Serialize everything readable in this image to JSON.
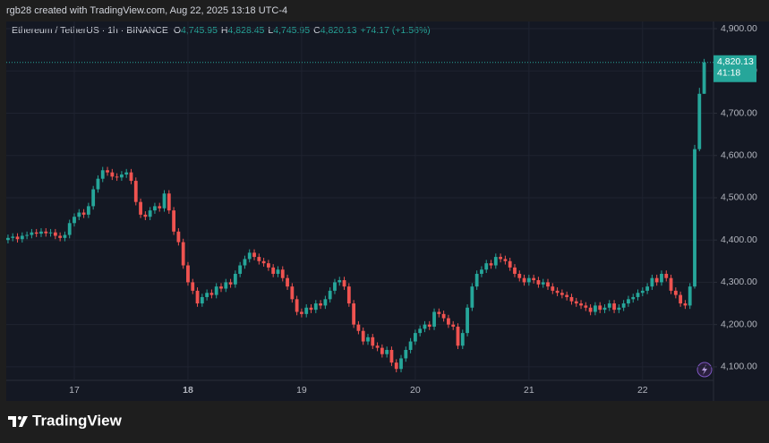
{
  "header": {
    "credit": "rgb28 created with TradingView.com, Aug 22, 2025 13:18 UTC-4",
    "symbol": "Ethereum / TetherUS · 1h · BINANCE",
    "ohlc": [
      {
        "key": "O",
        "value": "4,745.95"
      },
      {
        "key": "H",
        "value": "4,828.45"
      },
      {
        "key": "L",
        "value": "4,745.95"
      },
      {
        "key": "C",
        "value": "4,820.13"
      }
    ],
    "change": "+74.17 (+1.56%)"
  },
  "price_tag": {
    "price": "4,820.13",
    "countdown": "41:18"
  },
  "footer": {
    "logo": "TradingView"
  },
  "chart_data": {
    "type": "candlestick",
    "up_color": "#26a69a",
    "down_color": "#ef5350",
    "grid": true,
    "ylim": [
      4068,
      4917
    ],
    "yticks": [
      {
        "value": 4100,
        "label": "4,100.00"
      },
      {
        "value": 4200,
        "label": "4,200.00"
      },
      {
        "value": 4300,
        "label": "4,300.00"
      },
      {
        "value": 4400,
        "label": "4,400.00"
      },
      {
        "value": 4500,
        "label": "4,500.00"
      },
      {
        "value": 4600,
        "label": "4,600.00"
      },
      {
        "value": 4700,
        "label": "4,700.00"
      },
      {
        "value": 4800,
        "label": "4,800.00"
      },
      {
        "value": 4900,
        "label": "4,900.00"
      }
    ],
    "categories": [
      null,
      null,
      null,
      null,
      null,
      null,
      null,
      null,
      null,
      null,
      null,
      null,
      null,
      null,
      "17",
      null,
      null,
      null,
      null,
      null,
      null,
      null,
      null,
      null,
      null,
      null,
      null,
      null,
      null,
      null,
      null,
      null,
      null,
      null,
      null,
      null,
      null,
      null,
      "18",
      null,
      null,
      null,
      null,
      null,
      null,
      null,
      null,
      null,
      null,
      null,
      null,
      null,
      null,
      null,
      null,
      null,
      null,
      null,
      null,
      null,
      null,
      null,
      "19",
      null,
      null,
      null,
      null,
      null,
      null,
      null,
      null,
      null,
      null,
      null,
      null,
      null,
      null,
      null,
      null,
      null,
      null,
      null,
      null,
      null,
      null,
      null,
      "20",
      null,
      null,
      null,
      null,
      null,
      null,
      null,
      null,
      null,
      null,
      null,
      null,
      null,
      null,
      null,
      null,
      null,
      null,
      null,
      null,
      null,
      null,
      null,
      "21",
      null,
      null,
      null,
      null,
      null,
      null,
      null,
      null,
      null,
      null,
      null,
      null,
      null,
      null,
      null,
      null,
      null,
      null,
      null,
      null,
      null,
      null,
      null,
      "22",
      null,
      null,
      null,
      null,
      null,
      null,
      null,
      null,
      null,
      null,
      null,
      null,
      null
    ],
    "open": [
      4400,
      4405,
      4408,
      4402,
      4410,
      4412,
      4418,
      4415,
      4420,
      4416,
      4418,
      4410,
      4405,
      4412,
      4440,
      4455,
      4465,
      4460,
      4480,
      4520,
      4545,
      4565,
      4560,
      4550,
      4548,
      4555,
      4560,
      4540,
      4490,
      4460,
      4455,
      4470,
      4480,
      4475,
      4510,
      4470,
      4420,
      4395,
      4340,
      4300,
      4280,
      4250,
      4265,
      4275,
      4270,
      4290,
      4285,
      4300,
      4295,
      4320,
      4340,
      4355,
      4370,
      4360,
      4350,
      4345,
      4335,
      4320,
      4330,
      4310,
      4290,
      4260,
      4230,
      4225,
      4240,
      4235,
      4250,
      4245,
      4260,
      4280,
      4300,
      4305,
      4290,
      4250,
      4200,
      4185,
      4160,
      4170,
      4150,
      4145,
      4130,
      4140,
      4110,
      4095,
      4120,
      4140,
      4160,
      4180,
      4190,
      4200,
      4195,
      4230,
      4225,
      4215,
      4200,
      4195,
      4150,
      4180,
      4240,
      4290,
      4320,
      4330,
      4345,
      4340,
      4360,
      4355,
      4350,
      4335,
      4320,
      4310,
      4300,
      4310,
      4305,
      4295,
      4300,
      4290,
      4280,
      4275,
      4270,
      4265,
      4255,
      4250,
      4245,
      4240,
      4230,
      4245,
      4235,
      4240,
      4250,
      4235,
      4240,
      4250,
      4260,
      4265,
      4275,
      4280,
      4290,
      4310,
      4300,
      4320,
      4310,
      4280,
      4270,
      4250,
      4245,
      4290,
      4615,
      4745.95
    ],
    "high": [
      4413,
      4416,
      4416,
      4418,
      4420,
      4426,
      4426,
      4428,
      4428,
      4426,
      4426,
      4418,
      4420,
      4448,
      4463,
      4473,
      4473,
      4488,
      4528,
      4553,
      4573,
      4573,
      4568,
      4558,
      4563,
      4568,
      4568,
      4548,
      4498,
      4468,
      4478,
      4488,
      4488,
      4518,
      4518,
      4478,
      4428,
      4403,
      4348,
      4308,
      4288,
      4273,
      4283,
      4283,
      4298,
      4298,
      4308,
      4308,
      4328,
      4348,
      4363,
      4378,
      4378,
      4368,
      4358,
      4353,
      4343,
      4338,
      4338,
      4318,
      4298,
      4268,
      4238,
      4248,
      4248,
      4258,
      4258,
      4268,
      4288,
      4308,
      4313,
      4313,
      4298,
      4258,
      4208,
      4193,
      4178,
      4178,
      4158,
      4153,
      4148,
      4148,
      4118,
      4128,
      4148,
      4168,
      4188,
      4198,
      4208,
      4208,
      4238,
      4238,
      4233,
      4223,
      4208,
      4203,
      4188,
      4248,
      4298,
      4328,
      4338,
      4353,
      4353,
      4368,
      4368,
      4363,
      4358,
      4343,
      4328,
      4318,
      4318,
      4318,
      4313,
      4308,
      4308,
      4298,
      4288,
      4283,
      4278,
      4273,
      4263,
      4258,
      4253,
      4248,
      4253,
      4253,
      4248,
      4258,
      4258,
      4248,
      4258,
      4268,
      4273,
      4283,
      4288,
      4298,
      4318,
      4318,
      4328,
      4328,
      4318,
      4288,
      4278,
      4258,
      4298,
      4625,
      4760,
      4828.45
    ],
    "low": [
      4392,
      4397,
      4394,
      4394,
      4402,
      4404,
      4407,
      4407,
      4408,
      4408,
      4402,
      4397,
      4397,
      4404,
      4432,
      4447,
      4452,
      4452,
      4472,
      4512,
      4537,
      4552,
      4542,
      4540,
      4540,
      4547,
      4532,
      4482,
      4452,
      4447,
      4447,
      4462,
      4467,
      4467,
      4462,
      4412,
      4387,
      4332,
      4292,
      4272,
      4242,
      4242,
      4257,
      4262,
      4262,
      4277,
      4277,
      4287,
      4287,
      4312,
      4332,
      4347,
      4352,
      4342,
      4337,
      4327,
      4312,
      4312,
      4302,
      4282,
      4252,
      4222,
      4217,
      4217,
      4227,
      4227,
      4237,
      4237,
      4252,
      4272,
      4292,
      4282,
      4242,
      4192,
      4177,
      4152,
      4152,
      4142,
      4137,
      4122,
      4122,
      4102,
      4087,
      4087,
      4112,
      4132,
      4152,
      4172,
      4182,
      4187,
      4187,
      4217,
      4207,
      4192,
      4187,
      4142,
      4142,
      4172,
      4232,
      4282,
      4312,
      4322,
      4332,
      4332,
      4347,
      4342,
      4327,
      4312,
      4302,
      4292,
      4292,
      4297,
      4287,
      4287,
      4282,
      4272,
      4267,
      4262,
      4257,
      4247,
      4242,
      4237,
      4232,
      4222,
      4222,
      4227,
      4227,
      4232,
      4227,
      4227,
      4232,
      4242,
      4252,
      4257,
      4267,
      4272,
      4282,
      4292,
      4292,
      4302,
      4272,
      4262,
      4242,
      4237,
      4237,
      4285,
      4610,
      4745.95
    ],
    "close": [
      4405,
      4408,
      4402,
      4410,
      4412,
      4418,
      4415,
      4420,
      4416,
      4418,
      4410,
      4405,
      4412,
      4440,
      4455,
      4465,
      4460,
      4480,
      4520,
      4545,
      4565,
      4560,
      4550,
      4548,
      4555,
      4560,
      4540,
      4490,
      4460,
      4455,
      4470,
      4480,
      4475,
      4510,
      4470,
      4420,
      4395,
      4340,
      4300,
      4280,
      4250,
      4265,
      4275,
      4270,
      4290,
      4285,
      4300,
      4295,
      4320,
      4340,
      4355,
      4370,
      4360,
      4350,
      4345,
      4335,
      4320,
      4330,
      4310,
      4290,
      4260,
      4230,
      4225,
      4240,
      4235,
      4250,
      4245,
      4260,
      4280,
      4300,
      4305,
      4290,
      4250,
      4200,
      4185,
      4160,
      4170,
      4150,
      4145,
      4130,
      4140,
      4110,
      4095,
      4120,
      4140,
      4160,
      4180,
      4190,
      4200,
      4195,
      4230,
      4225,
      4215,
      4200,
      4195,
      4150,
      4180,
      4240,
      4290,
      4320,
      4330,
      4345,
      4340,
      4360,
      4355,
      4350,
      4335,
      4320,
      4310,
      4300,
      4310,
      4305,
      4295,
      4300,
      4290,
      4280,
      4275,
      4270,
      4265,
      4255,
      4250,
      4245,
      4240,
      4230,
      4245,
      4235,
      4240,
      4250,
      4235,
      4240,
      4250,
      4260,
      4265,
      4275,
      4280,
      4290,
      4310,
      4300,
      4320,
      4310,
      4280,
      4270,
      4250,
      4245,
      4290,
      4615,
      4745.95,
      4820.13
    ]
  }
}
